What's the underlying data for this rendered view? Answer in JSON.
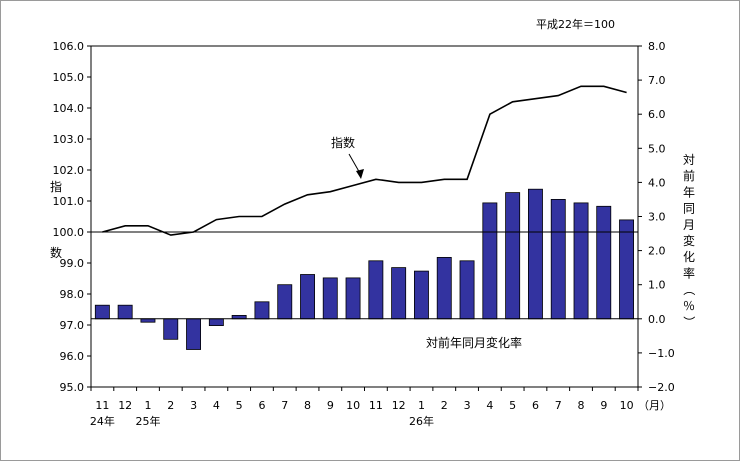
{
  "chart_data": {
    "type": "bar+line",
    "note": "平成22年＝100",
    "left_axis": {
      "label_top": "指",
      "label_bottom": "数",
      "ylim": [
        95.0,
        106.0
      ],
      "ticks": [
        "95.0",
        "96.0",
        "97.0",
        "98.0",
        "99.0",
        "100.0",
        "101.0",
        "102.0",
        "103.0",
        "104.0",
        "105.0",
        "106.0"
      ]
    },
    "right_axis": {
      "label": "対前年同月変化率（％）",
      "ylim": [
        -2.0,
        8.0
      ],
      "ticks": [
        "-2.0",
        "-1.0",
        "0.0",
        "1.0",
        "2.0",
        "3.0",
        "4.0",
        "5.0",
        "6.0",
        "7.0",
        "8.0"
      ]
    },
    "categories": [
      "11",
      "12",
      "1",
      "2",
      "3",
      "4",
      "5",
      "6",
      "7",
      "8",
      "9",
      "10",
      "11",
      "12",
      "1",
      "2",
      "3",
      "4",
      "5",
      "6",
      "7",
      "8",
      "9",
      "10"
    ],
    "month_unit": "（月）",
    "year_labels": [
      {
        "text": "24年",
        "index": 0
      },
      {
        "text": "25年",
        "index": 2
      },
      {
        "text": "26年",
        "index": 14
      }
    ],
    "series": [
      {
        "name": "指数",
        "kind": "line",
        "axis": "left",
        "values": [
          100.0,
          100.2,
          100.2,
          99.9,
          100.0,
          100.4,
          100.5,
          100.5,
          100.9,
          101.2,
          101.3,
          101.5,
          101.7,
          101.6,
          101.6,
          101.7,
          101.7,
          103.8,
          104.2,
          104.3,
          104.4,
          104.7,
          104.7,
          104.5
        ]
      },
      {
        "name": "対前年同月変化率",
        "kind": "bar",
        "axis": "right",
        "values": [
          0.4,
          0.4,
          -0.1,
          -0.6,
          -0.9,
          -0.2,
          0.1,
          0.5,
          1.0,
          1.3,
          1.2,
          1.2,
          1.7,
          1.5,
          1.4,
          1.8,
          1.7,
          3.4,
          3.7,
          3.8,
          3.5,
          3.4,
          3.3,
          2.9
        ]
      }
    ],
    "reference_line": 100.0,
    "colors": {
      "bar_fill": "#3333a0",
      "bar_stroke": "#000000",
      "line": "#000000"
    }
  }
}
